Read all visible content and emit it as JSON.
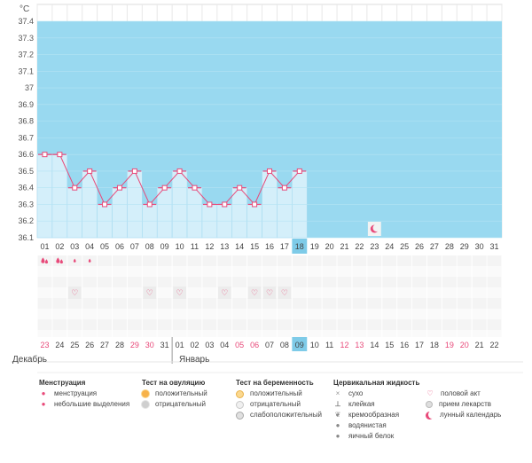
{
  "chart": {
    "unit": "°C",
    "y_ticks": [
      "37.4",
      "37.3",
      "37.2",
      "37.1",
      "37",
      "36.9",
      "36.8",
      "36.7",
      "36.6",
      "36.5",
      "36.4",
      "36.3",
      "36.2",
      "36.1"
    ],
    "x_days": [
      "01",
      "02",
      "03",
      "04",
      "05",
      "06",
      "07",
      "08",
      "09",
      "10",
      "11",
      "12",
      "13",
      "14",
      "15",
      "16",
      "17",
      "18",
      "19",
      "20",
      "21",
      "22",
      "23",
      "24",
      "25",
      "26",
      "27",
      "28",
      "29",
      "30",
      "31"
    ],
    "today_day_index": 17
  },
  "chart_data": {
    "type": "line",
    "title": "",
    "ylabel": "°C",
    "ylim": [
      36.1,
      37.4
    ],
    "x": [
      "01",
      "02",
      "03",
      "04",
      "05",
      "06",
      "07",
      "08",
      "09",
      "10",
      "11",
      "12",
      "13",
      "14",
      "15",
      "16",
      "17",
      "18"
    ],
    "y": [
      36.6,
      36.6,
      36.4,
      36.5,
      36.3,
      36.4,
      36.5,
      36.3,
      36.4,
      36.5,
      36.4,
      36.3,
      36.3,
      36.4,
      36.3,
      36.5,
      36.4,
      36.5
    ],
    "highlight_color": "#99d9f0",
    "line_color": "#e84a7a",
    "area_color": "#d4effa"
  },
  "markers": {
    "menstruation_big": [
      0,
      1
    ],
    "menstruation_small": [
      2,
      3
    ],
    "intercourse": [
      2,
      7,
      9,
      12,
      14,
      15,
      16
    ],
    "lunar": [
      22
    ]
  },
  "calendar": {
    "dates": [
      "23",
      "24",
      "25",
      "26",
      "27",
      "28",
      "29",
      "30",
      "31",
      "01",
      "02",
      "03",
      "04",
      "05",
      "06",
      "07",
      "08",
      "09",
      "10",
      "11",
      "12",
      "13",
      "14",
      "15",
      "16",
      "17",
      "18",
      "19",
      "20",
      "21",
      "22"
    ],
    "weekend": [
      0,
      6,
      7,
      13,
      14,
      20,
      21,
      27,
      28
    ],
    "today_index": 17,
    "month_break_index": 9,
    "month_left": "Декабрь",
    "month_right": "Январь",
    "colors": {
      "weekend": "#e84a7a",
      "normal": "#444444",
      "today_bg": "#7ecbe8"
    }
  },
  "legend": {
    "menstruation": {
      "title": "Менструация",
      "items": [
        {
          "icon": "large-drop-icon",
          "label": "менструация"
        },
        {
          "icon": "small-drop-icon",
          "label": "небольшие выделения"
        }
      ]
    },
    "ovulation": {
      "title": "Тест на овуляцию",
      "items": [
        {
          "icon": "positive-sun-icon",
          "label": "положительный"
        },
        {
          "icon": "negative-sun-icon",
          "label": "отрицательный"
        }
      ]
    },
    "pregnancy": {
      "title": "Тест на беременность",
      "items": [
        {
          "icon": "pregnancy-positive-icon",
          "label": "положительный"
        },
        {
          "icon": "pregnancy-negative-icon",
          "label": "отрицательный"
        },
        {
          "icon": "pregnancy-weak-icon",
          "label": "слабоположительный"
        }
      ]
    },
    "cervical": {
      "title": "Цервикальная жидкость",
      "items": [
        {
          "icon": "dry-icon",
          "label": "сухо"
        },
        {
          "icon": "sticky-icon",
          "label": "клейкая"
        },
        {
          "icon": "creamy-icon",
          "label": "кремообразная"
        },
        {
          "icon": "watery-icon",
          "label": "водянистая"
        },
        {
          "icon": "egg-white-icon",
          "label": "яичный белок"
        }
      ]
    },
    "other": {
      "items": [
        {
          "icon": "heart-icon",
          "label": "половой акт"
        },
        {
          "icon": "pill-icon",
          "label": "прием лекарств"
        },
        {
          "icon": "moon-icon",
          "label": "лунный календарь"
        }
      ]
    }
  }
}
